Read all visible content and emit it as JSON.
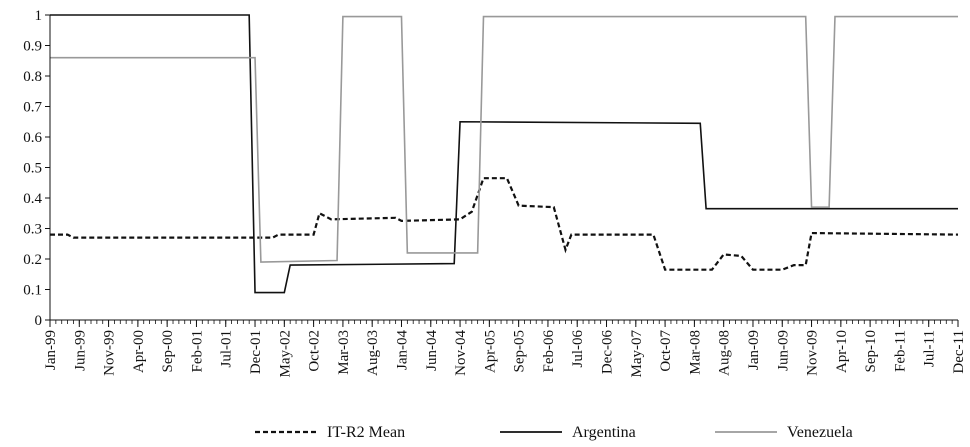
{
  "chart_data": {
    "type": "line",
    "ylim": [
      0,
      1
    ],
    "y_ticks": [
      0,
      0.1,
      0.2,
      0.3,
      0.4,
      0.5,
      0.6,
      0.7,
      0.8,
      0.9,
      1
    ],
    "x_start": "1999-01",
    "x_end": "2011-12",
    "x_ticks": [
      "Jan-99",
      "Jun-99",
      "Nov-99",
      "Apr-00",
      "Sep-00",
      "Feb-01",
      "Jul-01",
      "Dec-01",
      "May-02",
      "Oct-02",
      "Mar-03",
      "Aug-03",
      "Jan-04",
      "Jun-04",
      "Nov-04",
      "Apr-05",
      "Sep-05",
      "Feb-06",
      "Jul-06",
      "Dec-06",
      "May-07",
      "Oct-07",
      "Mar-08",
      "Aug-08",
      "Jan-09",
      "Jun-09",
      "Nov-09",
      "Apr-10",
      "Sep-10",
      "Feb-11",
      "Jul-11",
      "Dec-11"
    ],
    "legend_position": "bottom",
    "series": [
      {
        "name": "IT-R2 Mean",
        "color": "#111111",
        "style": "dashed",
        "points": [
          [
            "1999-01",
            0.28
          ],
          [
            "1999-04",
            0.28
          ],
          [
            "1999-05",
            0.27
          ],
          [
            "2001-12",
            0.27
          ],
          [
            "2002-03",
            0.27
          ],
          [
            "2002-04",
            0.28
          ],
          [
            "2002-10",
            0.28
          ],
          [
            "2002-11",
            0.35
          ],
          [
            "2003-01",
            0.33
          ],
          [
            "2003-12",
            0.335
          ],
          [
            "2004-01",
            0.325
          ],
          [
            "2004-11",
            0.33
          ],
          [
            "2005-01",
            0.355
          ],
          [
            "2005-03",
            0.465
          ],
          [
            "2005-07",
            0.465
          ],
          [
            "2005-09",
            0.375
          ],
          [
            "2006-03",
            0.37
          ],
          [
            "2006-05",
            0.23
          ],
          [
            "2006-06",
            0.28
          ],
          [
            "2007-08",
            0.28
          ],
          [
            "2007-10",
            0.165
          ],
          [
            "2008-06",
            0.165
          ],
          [
            "2008-08",
            0.215
          ],
          [
            "2008-11",
            0.21
          ],
          [
            "2009-01",
            0.165
          ],
          [
            "2009-06",
            0.165
          ],
          [
            "2009-08",
            0.18
          ],
          [
            "2009-10",
            0.18
          ],
          [
            "2009-11",
            0.285
          ],
          [
            "2011-12",
            0.28
          ]
        ]
      },
      {
        "name": "Argentina",
        "color": "#111111",
        "style": "solid",
        "points": [
          [
            "1999-01",
            1.0
          ],
          [
            "2001-11",
            1.0
          ],
          [
            "2001-12",
            0.09
          ],
          [
            "2002-05",
            0.09
          ],
          [
            "2002-06",
            0.18
          ],
          [
            "2004-10",
            0.185
          ],
          [
            "2004-11",
            0.65
          ],
          [
            "2008-04",
            0.645
          ],
          [
            "2008-05",
            0.365
          ],
          [
            "2011-12",
            0.365
          ]
        ]
      },
      {
        "name": "Venezuela",
        "color": "#999999",
        "style": "solid",
        "points": [
          [
            "1999-01",
            0.86
          ],
          [
            "2001-12",
            0.86
          ],
          [
            "2002-01",
            0.19
          ],
          [
            "2003-02",
            0.195
          ],
          [
            "2003-03",
            0.995
          ],
          [
            "2004-01",
            0.995
          ],
          [
            "2004-02",
            0.22
          ],
          [
            "2005-02",
            0.22
          ],
          [
            "2005-03",
            0.995
          ],
          [
            "2009-10",
            0.995
          ],
          [
            "2009-11",
            0.37
          ],
          [
            "2010-02",
            0.37
          ],
          [
            "2010-03",
            0.995
          ],
          [
            "2011-12",
            0.995
          ]
        ]
      }
    ]
  }
}
